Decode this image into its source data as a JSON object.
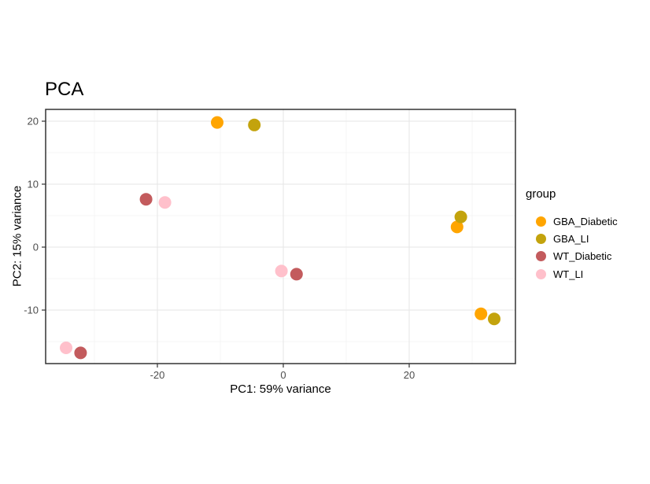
{
  "chart_data": {
    "type": "scatter",
    "title": "PCA",
    "xlabel": "PC1: 59% variance",
    "ylabel": "PC2: 15% variance",
    "legend_title": "group",
    "legend_position": "right",
    "grid": true,
    "x_domain": [
      -37.75,
      36.875
    ],
    "y_domain": [
      -18.5,
      21.875
    ],
    "x_ticks_major": [
      -20,
      0,
      20
    ],
    "x_ticks_minor": [
      -30,
      -10,
      10,
      30
    ],
    "y_ticks_major": [
      -10,
      0,
      10,
      20
    ],
    "y_ticks_minor": [
      -15,
      -5,
      5,
      15
    ],
    "point_radius": 8,
    "series": [
      {
        "name": "GBA_Diabetic",
        "color": "#FFA500",
        "points": [
          [
            -10.5,
            19.8
          ],
          [
            27.6,
            3.2
          ],
          [
            31.4,
            -10.6
          ]
        ]
      },
      {
        "name": "GBA_LI",
        "color": "#C3A30D",
        "points": [
          [
            -4.6,
            19.4
          ],
          [
            28.2,
            4.8
          ],
          [
            33.5,
            -11.4
          ]
        ]
      },
      {
        "name": "WT_Diabetic",
        "color": "#C35B5D",
        "points": [
          [
            -21.8,
            7.6
          ],
          [
            2.1,
            -4.3
          ],
          [
            -32.2,
            -16.8
          ]
        ]
      },
      {
        "name": "WT_LI",
        "color": "#FFC0CB",
        "points": [
          [
            -18.8,
            7.1
          ],
          [
            -0.3,
            -3.8
          ],
          [
            -34.5,
            -16.0
          ]
        ]
      }
    ],
    "colors": {
      "panel_background": "#FFFFFF",
      "panel_border": "#333333",
      "grid_major": "#E9E9E9",
      "grid_minor": "#F4F4F4",
      "tick_mark": "#333333",
      "tick_label": "#4D4D4D",
      "text": "#000000"
    }
  }
}
